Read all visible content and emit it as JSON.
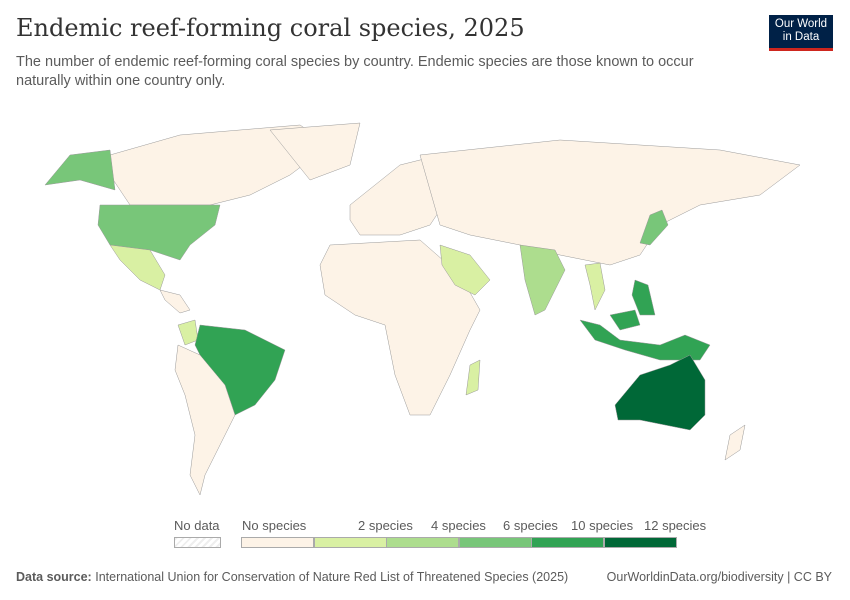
{
  "header": {
    "title": "Endemic reef-forming coral species, 2025",
    "subtitle": "The number of endemic reef-forming coral species by country. Endemic species are those known to occur naturally within one country only.",
    "logo": "Our World in Data"
  },
  "legend": {
    "no_data": "No data",
    "bins": [
      {
        "label": "No species",
        "color": "#fdf3e7"
      },
      {
        "label": "2 species",
        "color": "#d9f0a3"
      },
      {
        "label": "4 species",
        "color": "#addd8e"
      },
      {
        "label": "6 species",
        "color": "#78c679"
      },
      {
        "label": "10 species",
        "color": "#31a354"
      },
      {
        "label": "12 species",
        "color": "#006837"
      }
    ]
  },
  "map_data": {
    "type": "choropleth",
    "countries": [
      {
        "name": "Australia",
        "bin": "10–12+ species",
        "color": "#006837"
      },
      {
        "name": "Brazil",
        "bin": "6–10 species",
        "color": "#31a354"
      },
      {
        "name": "Indonesia",
        "bin": "6–10 species",
        "color": "#31a354"
      },
      {
        "name": "Philippines",
        "bin": "6–10 species",
        "color": "#31a354"
      },
      {
        "name": "Papua New Guinea",
        "bin": "6–10 species",
        "color": "#31a354"
      },
      {
        "name": "Malaysia",
        "bin": "6–10 species",
        "color": "#31a354"
      },
      {
        "name": "United States",
        "bin": "4–6 species",
        "color": "#78c679"
      },
      {
        "name": "Japan",
        "bin": "4–6 species",
        "color": "#78c679"
      },
      {
        "name": "India",
        "bin": "2–4 species",
        "color": "#addd8e"
      },
      {
        "name": "Mexico",
        "bin": "0–2 species",
        "color": "#d9f0a3"
      },
      {
        "name": "Saudi Arabia",
        "bin": "0–2 species",
        "color": "#d9f0a3"
      },
      {
        "name": "Madagascar",
        "bin": "0–2 species",
        "color": "#d9f0a3"
      },
      {
        "name": "Colombia",
        "bin": "0–2 species",
        "color": "#d9f0a3"
      },
      {
        "name": "Thailand",
        "bin": "0–2 species",
        "color": "#d9f0a3"
      }
    ]
  },
  "footer": {
    "source_label": "Data source:",
    "source": "International Union for Conservation of Nature Red List of Threatened Species (2025)",
    "url": "OurWorldinData.org/biodiversity | CC BY"
  }
}
